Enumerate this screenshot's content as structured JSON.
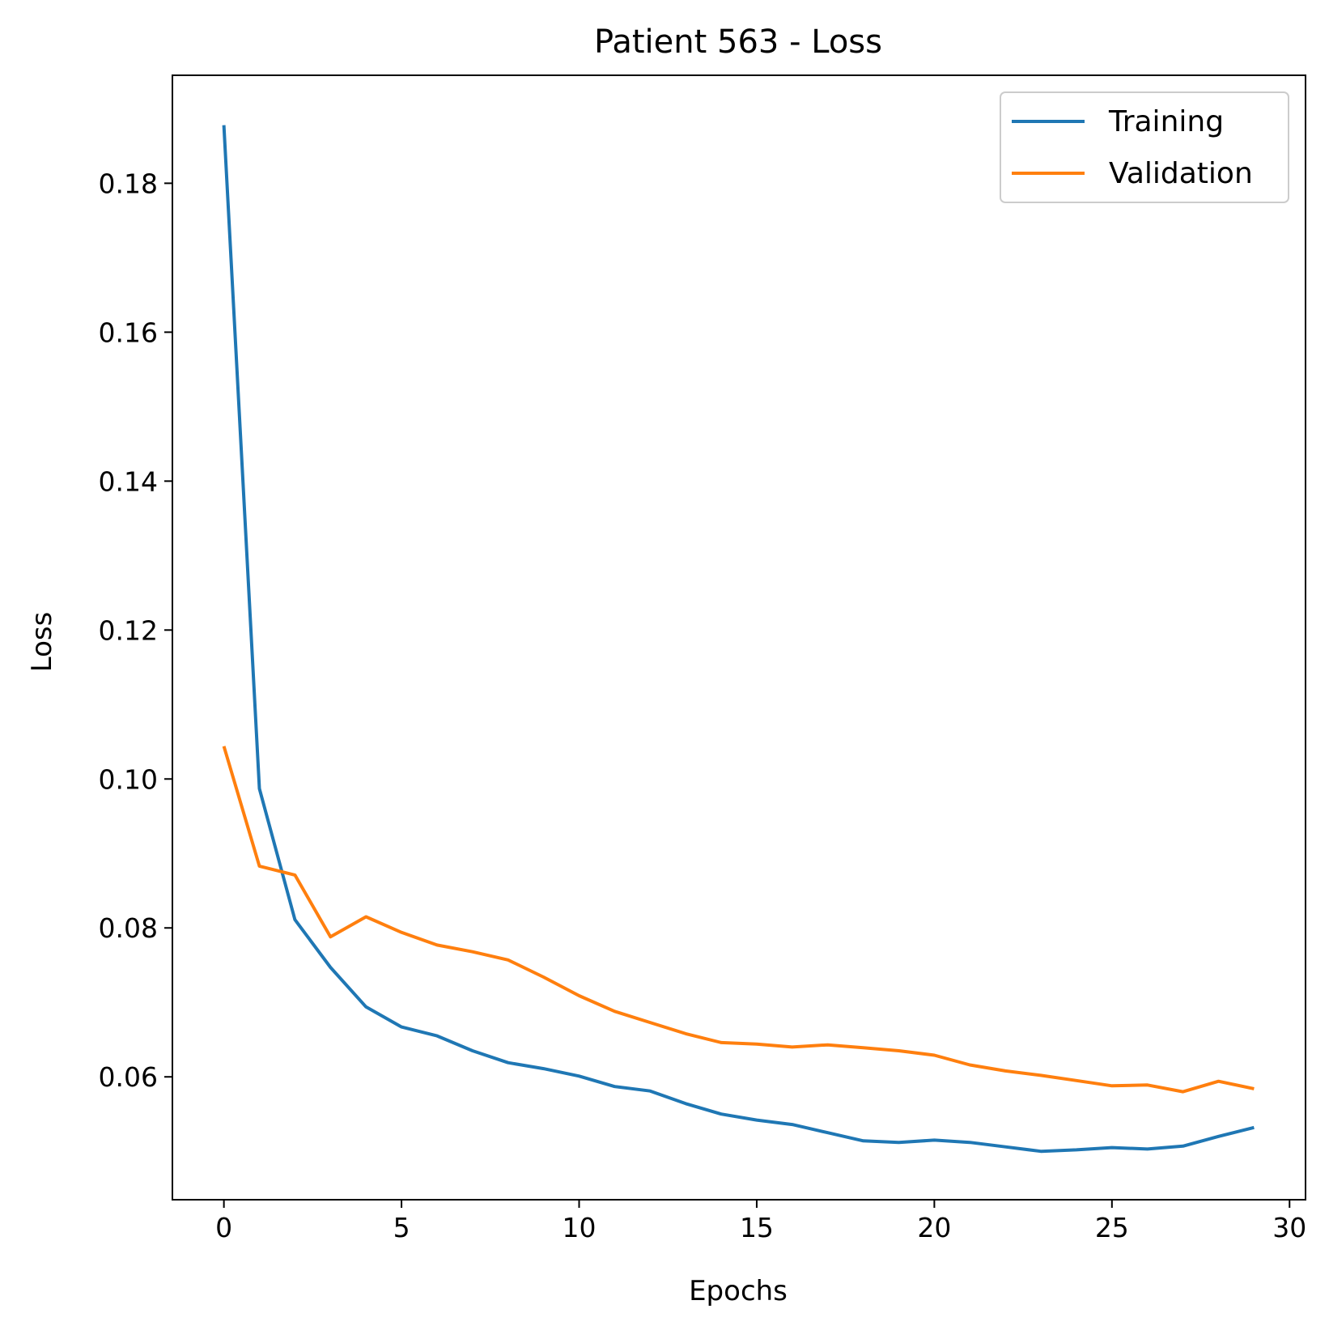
{
  "chart_data": {
    "type": "line",
    "title": "Patient 563 - Loss",
    "xlabel": "Epochs",
    "ylabel": "Loss",
    "xlim": [
      -1.45,
      30.45
    ],
    "ylim": [
      0.0435,
      0.1945
    ],
    "xticks": [
      0,
      5,
      10,
      15,
      20,
      25,
      30
    ],
    "yticks": [
      0.06,
      0.08,
      0.1,
      0.12,
      0.14,
      0.16,
      0.18
    ],
    "ytick_labels": [
      "0.06",
      "0.08",
      "0.10",
      "0.12",
      "0.14",
      "0.16",
      "0.18"
    ],
    "grid": false,
    "legend_position": "top-right",
    "x": [
      0,
      1,
      2,
      3,
      4,
      5,
      6,
      7,
      8,
      9,
      10,
      11,
      12,
      13,
      14,
      15,
      16,
      17,
      18,
      19,
      20,
      21,
      22,
      23,
      24,
      25,
      26,
      27,
      28,
      29
    ],
    "series": [
      {
        "name": "Training",
        "color": "#1f77b4",
        "values": [
          0.1878,
          0.0987,
          0.0811,
          0.0747,
          0.0694,
          0.0667,
          0.0655,
          0.0635,
          0.0619,
          0.0611,
          0.0601,
          0.0587,
          0.0581,
          0.0564,
          0.055,
          0.0542,
          0.0536,
          0.0525,
          0.0514,
          0.0512,
          0.0515,
          0.0512,
          0.0506,
          0.05,
          0.0502,
          0.0505,
          0.0503,
          0.0507,
          0.052,
          0.0532
        ]
      },
      {
        "name": "Validation",
        "color": "#ff7f0e",
        "values": [
          0.1044,
          0.0883,
          0.0871,
          0.0788,
          0.0815,
          0.0794,
          0.0777,
          0.0768,
          0.0757,
          0.0734,
          0.0709,
          0.0688,
          0.0673,
          0.0658,
          0.0646,
          0.0644,
          0.064,
          0.0643,
          0.0639,
          0.0635,
          0.0629,
          0.0616,
          0.0608,
          0.0602,
          0.0595,
          0.0588,
          0.0589,
          0.058,
          0.0594,
          0.0584
        ]
      }
    ]
  }
}
